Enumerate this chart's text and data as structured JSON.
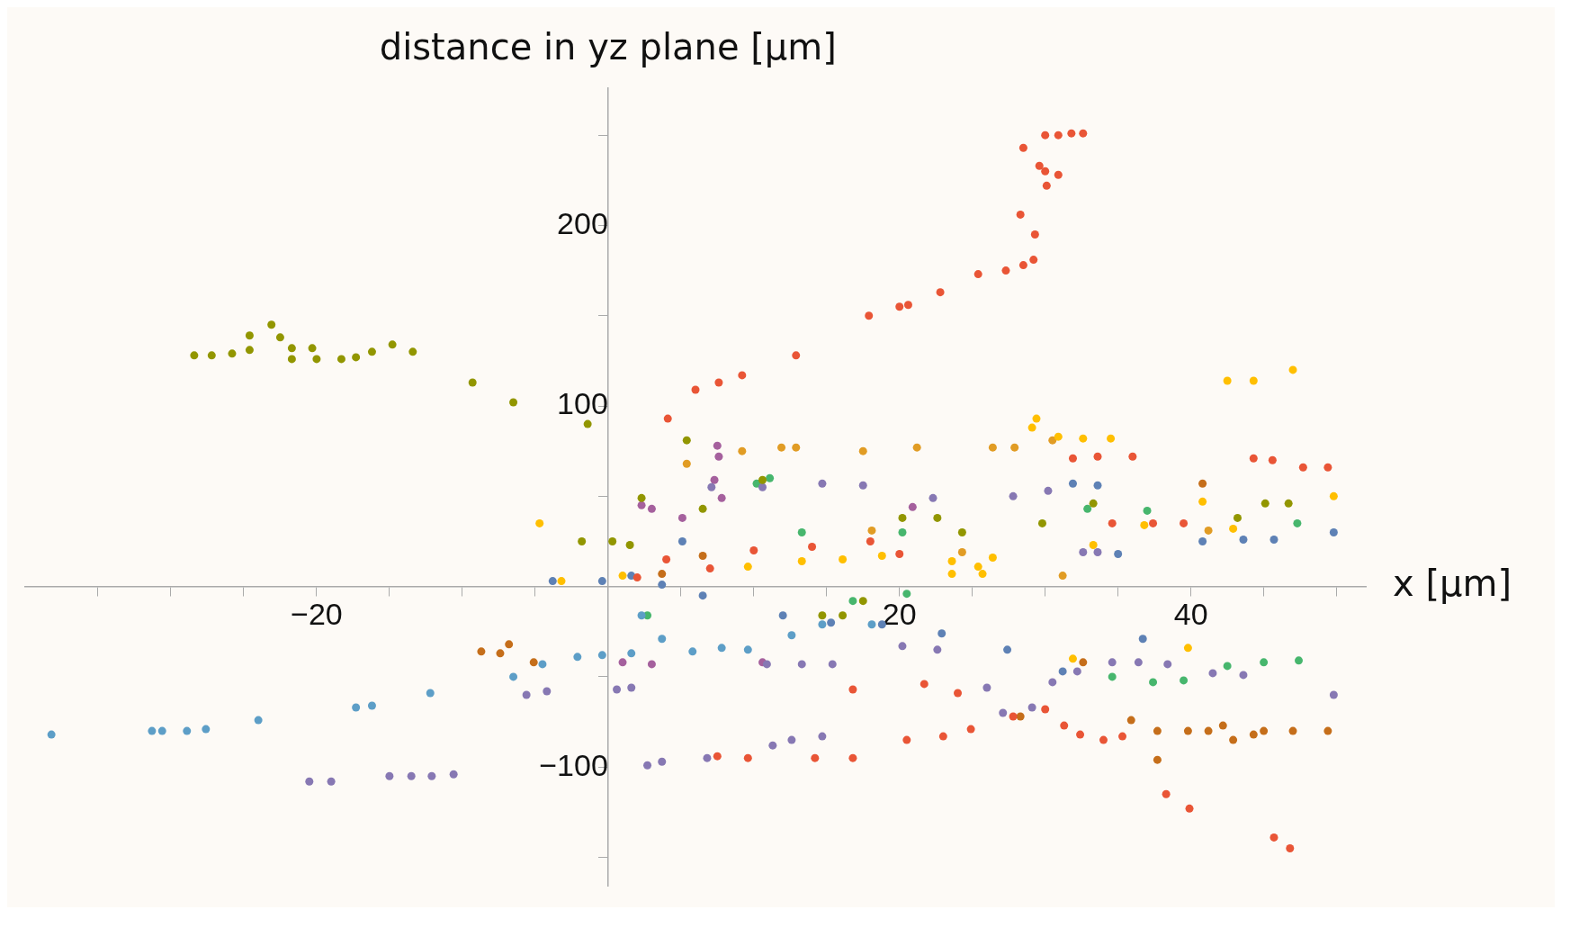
{
  "chart_data": {
    "type": "scatter",
    "xlabel": "x [μm]",
    "ylabel": "distance in yz plane [μm]",
    "marker": "circle",
    "xlim": [
      -40,
      52
    ],
    "ylim": [
      -166,
      276
    ],
    "xticks": [
      {
        "value": -35,
        "label": null
      },
      {
        "value": -30,
        "label": null
      },
      {
        "value": -25,
        "label": null
      },
      -20,
      {
        "value": -15,
        "label": null
      },
      {
        "value": -10,
        "label": null
      },
      {
        "value": -5,
        "label": null
      },
      {
        "value": 5,
        "label": null
      },
      {
        "value": 10,
        "label": null
      },
      {
        "value": 15,
        "label": null
      },
      20,
      {
        "value": 25,
        "label": null
      },
      {
        "value": 30,
        "label": null
      },
      {
        "value": 35,
        "label": null
      },
      40,
      {
        "value": 45,
        "label": null
      },
      {
        "value": 50,
        "label": null
      }
    ],
    "yticks": [
      {
        "value": -150,
        "label": null
      },
      -100,
      {
        "value": -50,
        "label": null
      },
      {
        "value": 50,
        "label": null
      },
      100,
      {
        "value": 150,
        "label": null
      },
      200,
      {
        "value": 250,
        "label": null
      }
    ],
    "series": [
      {
        "color": "#e95536",
        "x": [
          4.1,
          6,
          7.6,
          9.2,
          12.9,
          17.9,
          20,
          20.6,
          22.8,
          25.4,
          27.3,
          28.5,
          29.2,
          29.3,
          28.3,
          28.5,
          29.6,
          30,
          30.9,
          30.1,
          30,
          30.9,
          31.8,
          32.6,
          45.7,
          46.8,
          38.3,
          39.9,
          7.5,
          9.6,
          14.2,
          16.8,
          20.5,
          23,
          24.9,
          27.8,
          30,
          31.3,
          32.4,
          34,
          35.3,
          31.9,
          33.6,
          36,
          44.3,
          45.6,
          47.7,
          49.4,
          34.6,
          37.4,
          39.5,
          21.7,
          24,
          16.8,
          2,
          4,
          7,
          10,
          14,
          18,
          20
        ],
        "values": [
          93,
          109,
          113,
          117,
          128,
          150,
          155,
          156,
          163,
          173,
          175,
          178,
          181,
          195,
          206,
          243,
          233,
          230,
          228,
          222,
          250,
          250,
          251,
          251,
          -139,
          -145,
          -115,
          -123,
          -94,
          -95,
          -95,
          -95,
          -85,
          -83,
          -79,
          -72,
          -68,
          -77,
          -82,
          -85,
          -83,
          71,
          72,
          72,
          71,
          70,
          66,
          66,
          35,
          35,
          35,
          -54,
          -59,
          -57,
          5,
          15,
          10,
          20,
          22,
          25,
          18
        ]
      },
      {
        "color": "#929600",
        "x": [
          -28.4,
          -27.2,
          -25.8,
          -24.6,
          -24.6,
          -23.1,
          -22.5,
          -21.7,
          -21.7,
          -20.3,
          -20,
          -18.3,
          -17.3,
          -16.2,
          -14.8,
          -13.4,
          -9.3,
          -6.5,
          -1.4,
          -1.8,
          0.3,
          1.5,
          5.4,
          2.3,
          6.5,
          10.6,
          14.7,
          16.1,
          17.5,
          20.2,
          22.6,
          24.3,
          29.8,
          33.3,
          43.2,
          45.1,
          46.7
        ],
        "values": [
          128,
          128,
          129,
          131,
          139,
          145,
          138,
          132,
          126,
          132,
          126,
          126,
          127,
          130,
          134,
          130,
          113,
          102,
          90,
          25,
          25,
          23,
          81,
          49,
          43,
          59,
          -16,
          -16,
          -8,
          38,
          38,
          30,
          35,
          46,
          38,
          46,
          46
        ]
      },
      {
        "color": "#5d9ec7",
        "x": [
          -38.2,
          -31.3,
          -30.6,
          -28.9,
          -27.6,
          -24,
          -17.3,
          -16.2,
          -12.2,
          -6.5,
          -4.5,
          -2.1,
          -0.4,
          1.6,
          3.7,
          5.8,
          7.8,
          9.6,
          12.6,
          14.7,
          18.1,
          2.3
        ],
        "values": [
          -82,
          -80,
          -80,
          -80,
          -79,
          -74,
          -67,
          -66,
          -59,
          -50,
          -43,
          -39,
          -38,
          -37,
          -29,
          -36,
          -34,
          -35,
          -27,
          -21,
          -21,
          -16
        ]
      },
      {
        "color": "#8778b3",
        "x": [
          -20.5,
          -19,
          -15,
          -13.5,
          -12.1,
          -10.6,
          -5.6,
          -4.2,
          0.6,
          1.6,
          2.7,
          3.7,
          6.8,
          11.3,
          12.6,
          14.7,
          10.9,
          13.3,
          15.4,
          20.2,
          22.6,
          26,
          27.1,
          29.1,
          30.5,
          32.2,
          34.6,
          36.4,
          38.4,
          41.5,
          43.6,
          49.8,
          7.1,
          10.6,
          14.7,
          17.5,
          22.3,
          27.8,
          30.2,
          32.6,
          33.6
        ],
        "values": [
          -108,
          -108,
          -105,
          -105,
          -105,
          -104,
          -60,
          -58,
          -57,
          -56,
          -99,
          -97,
          -95,
          -88,
          -85,
          -83,
          -43,
          -43,
          -43,
          -33,
          -35,
          -56,
          -70,
          -67,
          -53,
          -47,
          -42,
          -42,
          -43,
          -48,
          -49,
          -60,
          55,
          55,
          57,
          56,
          49,
          50,
          53,
          19,
          19
        ]
      },
      {
        "color": "#c56e1a",
        "x": [
          -8.7,
          -7.4,
          -6.8,
          -5.1,
          32.6,
          35.9,
          37.7,
          39.8,
          41.2,
          42.2,
          42.9,
          44.3,
          45,
          47,
          49.4,
          37.7,
          40.8,
          28.3,
          3.7,
          6.5
        ],
        "values": [
          -36,
          -37,
          -32,
          -42,
          -42,
          -74,
          -80,
          -80,
          -80,
          -77,
          -85,
          -82,
          -80,
          -80,
          -80,
          -96,
          57,
          -72,
          7,
          17
        ]
      },
      {
        "color": "#ffbf00",
        "x": [
          -4.7,
          -3.2,
          1,
          9.6,
          13.3,
          16.1,
          18.8,
          23.6,
          25.4,
          26.4,
          25.7,
          29.1,
          29.4,
          30.9,
          32.6,
          34.5,
          40.8,
          42.9,
          42.5,
          44.3,
          47,
          49.8,
          33.3,
          36.8,
          31.9,
          39.8,
          23.6
        ],
        "values": [
          35,
          3,
          6,
          11,
          14,
          15,
          17,
          14,
          11,
          16,
          7,
          88,
          93,
          83,
          82,
          82,
          47,
          32,
          114,
          114,
          120,
          50,
          23,
          34,
          -40,
          -34,
          7
        ]
      },
      {
        "color": "#e19c24",
        "x": [
          5.4,
          9.2,
          11.9,
          12.9,
          17.5,
          21.2,
          26.4,
          27.9,
          30.5,
          18.1,
          24.3,
          31.2,
          41.2
        ],
        "values": [
          68,
          75,
          77,
          77,
          75,
          77,
          77,
          77,
          81,
          31,
          19,
          6,
          31
        ]
      },
      {
        "color": "#a5609d",
        "x": [
          7.5,
          7.3,
          7.8,
          7.6,
          2.3,
          3,
          5.1,
          1,
          3,
          10.6,
          20.9
        ],
        "values": [
          78,
          59,
          49,
          72,
          45,
          43,
          38,
          -42,
          -43,
          -42,
          44
        ]
      },
      {
        "color": "#47b66d",
        "x": [
          20.5,
          16.8,
          34.6,
          37.4,
          39.5,
          42.5,
          45,
          47.4,
          47.3,
          37,
          10.2,
          11.1,
          32.9,
          13.3,
          20.2,
          2.7
        ],
        "values": [
          -4,
          -8,
          -50,
          -53,
          -52,
          -44,
          -42,
          -41,
          35,
          42,
          57,
          60,
          43,
          30,
          30,
          -16
        ]
      },
      {
        "color": "#5e81b5",
        "x": [
          -3.8,
          -0.4,
          1.6,
          3.7,
          6.5,
          12,
          15.3,
          18.8,
          22.9,
          27.4,
          31.2,
          36.7,
          40.8,
          43.6,
          45.7,
          49.8,
          31.9,
          33.6,
          35,
          5.1
        ],
        "values": [
          3,
          3,
          6,
          1,
          -5,
          -16,
          -20,
          -21,
          -26,
          -35,
          -47,
          -29,
          25,
          26,
          26,
          30,
          57,
          56,
          18,
          25
        ]
      }
    ]
  }
}
